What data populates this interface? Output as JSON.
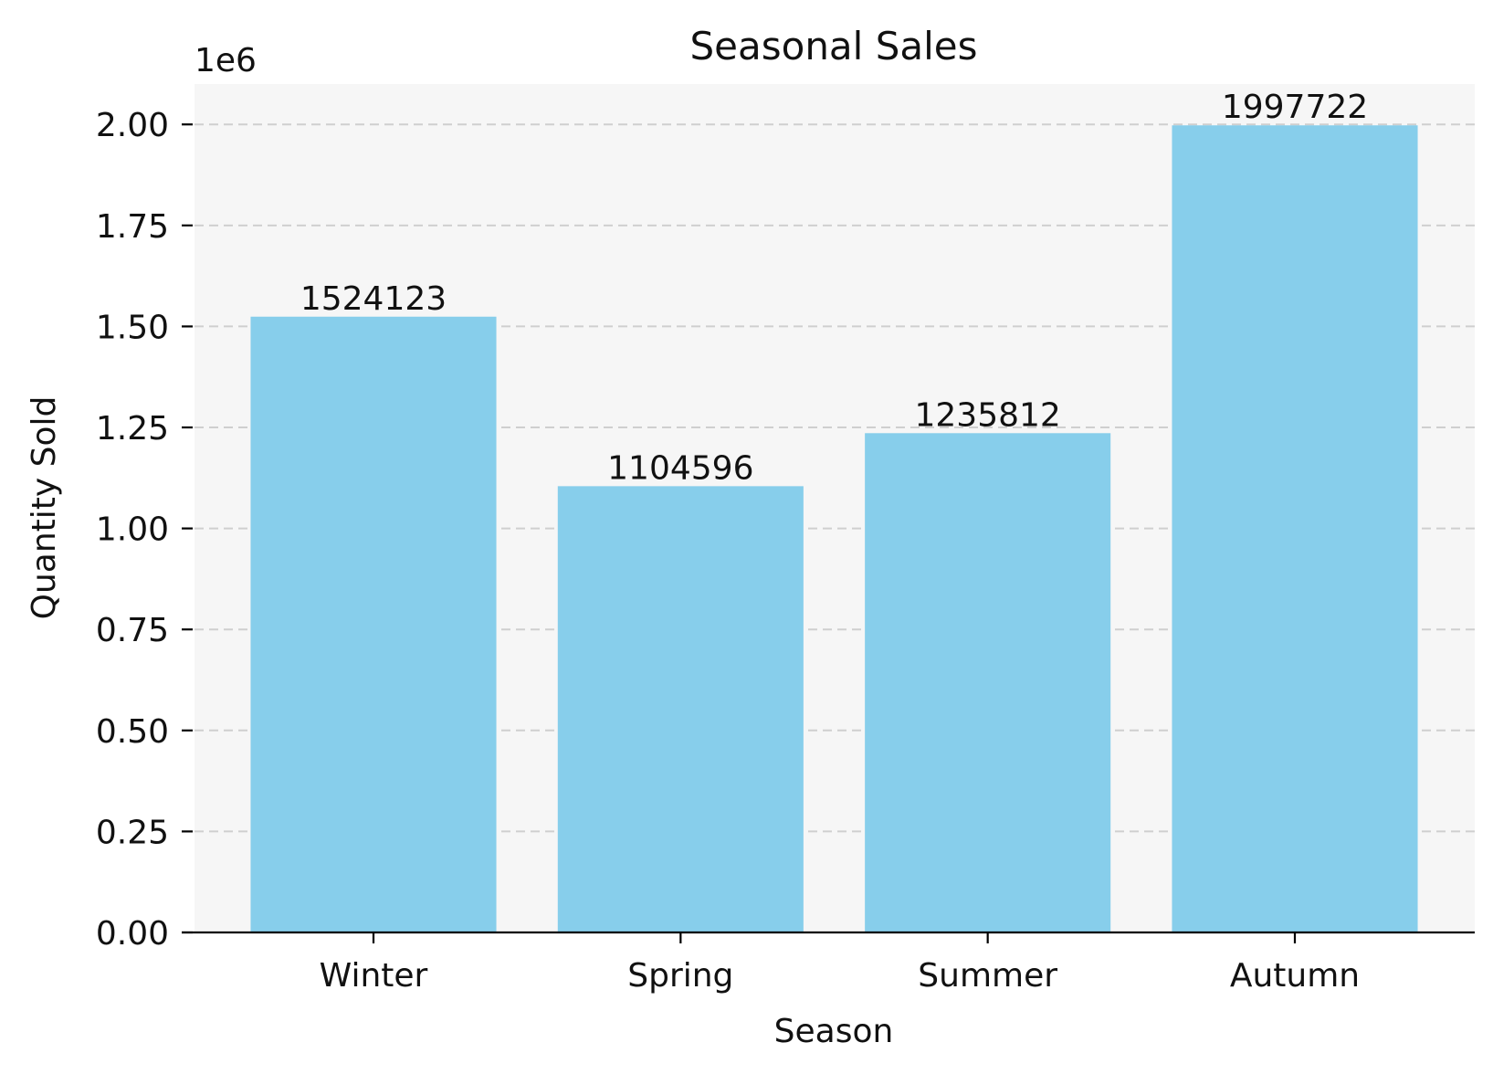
{
  "chart_data": {
    "type": "bar",
    "title": "Seasonal Sales",
    "xlabel": "Season",
    "ylabel": "Quantity Sold",
    "categories": [
      "Winter",
      "Spring",
      "Summer",
      "Autumn"
    ],
    "values": [
      1524123,
      1104596,
      1235812,
      1997722
    ],
    "data_labels": [
      "1524123",
      "1104596",
      "1235812",
      "1997722"
    ],
    "ylim": [
      0,
      2100000
    ],
    "yticks": [
      0,
      250000,
      500000,
      750000,
      1000000,
      1250000,
      1500000,
      1750000,
      2000000
    ],
    "ytick_labels": [
      "0.00",
      "0.25",
      "0.50",
      "0.75",
      "1.00",
      "1.25",
      "1.50",
      "1.75",
      "2.00"
    ],
    "y_offset_text": "1e6",
    "grid": "y-dashed",
    "legend": "none",
    "bar_color": "#87ceeb",
    "plot_background": "#f6f6f6"
  }
}
